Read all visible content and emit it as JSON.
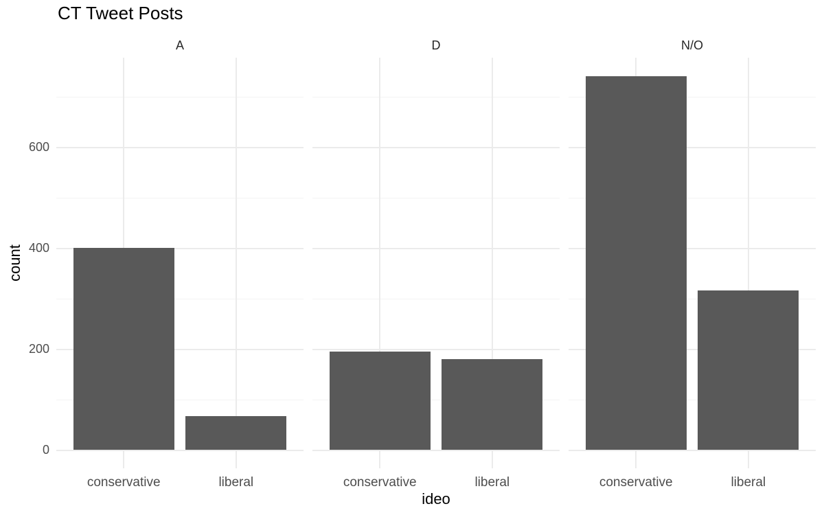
{
  "chart_data": {
    "type": "bar",
    "title": "CT Tweet Posts",
    "xlabel": "ideo",
    "ylabel": "count",
    "categories": [
      "conservative",
      "liberal"
    ],
    "facets": [
      {
        "label": "A",
        "values": [
          400,
          67
        ]
      },
      {
        "label": "D",
        "values": [
          195,
          180
        ]
      },
      {
        "label": "N/O",
        "values": [
          740,
          316
        ]
      }
    ],
    "y_ticks": [
      0,
      200,
      400,
      600
    ],
    "y_minor_gridlines": [
      100,
      300,
      500,
      700
    ],
    "ylim": [
      0,
      777
    ],
    "grid": "on",
    "legend_position": "none",
    "colors": {
      "bar": "#595959",
      "grid_major": "#EBEBEB",
      "grid_minor": "#F3F3F3",
      "axis_text": "#4D4D4D",
      "strip_text": "#262626",
      "title_text": "#000000",
      "background": "#FFFFFF"
    }
  }
}
